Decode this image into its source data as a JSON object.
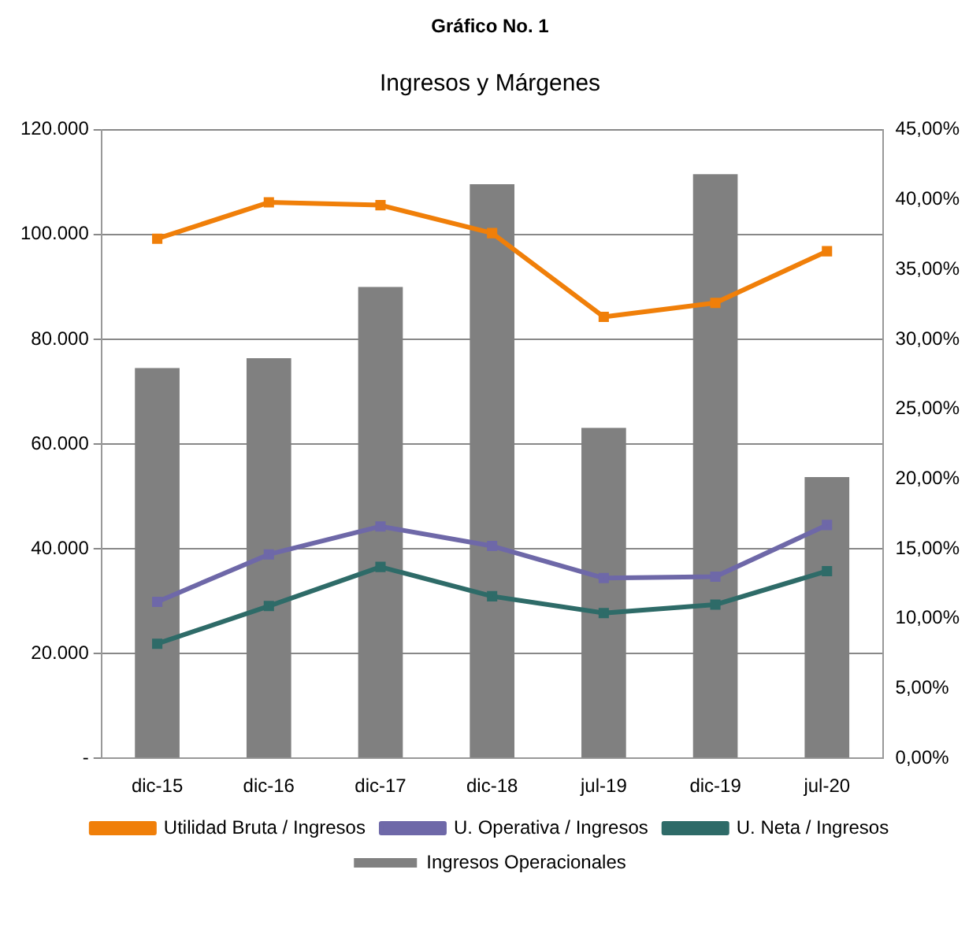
{
  "chart_data": {
    "type": "bar",
    "title": "Gráfico No. 1",
    "subtitle": "Ingresos y Márgenes",
    "categories": [
      "dic-15",
      "dic-16",
      "dic-17",
      "dic-18",
      "jul-19",
      "dic-19",
      "jul-20"
    ],
    "series": [
      {
        "name": "Ingresos Operacionales",
        "color": "#808080",
        "values": [
          74500,
          76400,
          90000,
          109600,
          63100,
          111500,
          53700
        ]
      },
      {
        "name": "Utilidad Bruta / Ingresos",
        "type": "line",
        "axis": "y2",
        "color": "#f07f09",
        "values": [
          37.2,
          39.8,
          39.6,
          37.6,
          31.6,
          32.6,
          36.3
        ]
      },
      {
        "name": "U. Operativa / Ingresos",
        "type": "line",
        "axis": "y2",
        "color": "#6e68a8",
        "values": [
          11.2,
          14.6,
          16.6,
          15.2,
          12.9,
          13.0,
          16.7
        ]
      },
      {
        "name": "U. Neta / Ingresos",
        "type": "line",
        "axis": "y2",
        "color": "#2e6b68",
        "values": [
          8.2,
          10.9,
          13.7,
          11.6,
          10.4,
          11.0,
          13.4
        ]
      }
    ],
    "ylim": [
      0,
      120000
    ],
    "yticks": [
      {
        "value": 0,
        "label": "-"
      },
      {
        "value": 20000,
        "label": "20.000"
      },
      {
        "value": 40000,
        "label": "40.000"
      },
      {
        "value": 60000,
        "label": "60.000"
      },
      {
        "value": 80000,
        "label": "80.000"
      },
      {
        "value": 100000,
        "label": "100.000"
      },
      {
        "value": 120000,
        "label": "120.000"
      }
    ],
    "y2lim": [
      0,
      45
    ],
    "y2ticks": [
      {
        "value": 0,
        "label": "0,00%"
      },
      {
        "value": 5,
        "label": "5,00%"
      },
      {
        "value": 10,
        "label": "10,00%"
      },
      {
        "value": 15,
        "label": "15,00%"
      },
      {
        "value": 20,
        "label": "20,00%"
      },
      {
        "value": 25,
        "label": "25,00%"
      },
      {
        "value": 30,
        "label": "30,00%"
      },
      {
        "value": 35,
        "label": "35,00%"
      },
      {
        "value": 40,
        "label": "40,00%"
      },
      {
        "value": 45,
        "label": "45,00%"
      }
    ],
    "grid": "y",
    "legend": "bottom",
    "marker": "square",
    "line_style": "solid"
  }
}
